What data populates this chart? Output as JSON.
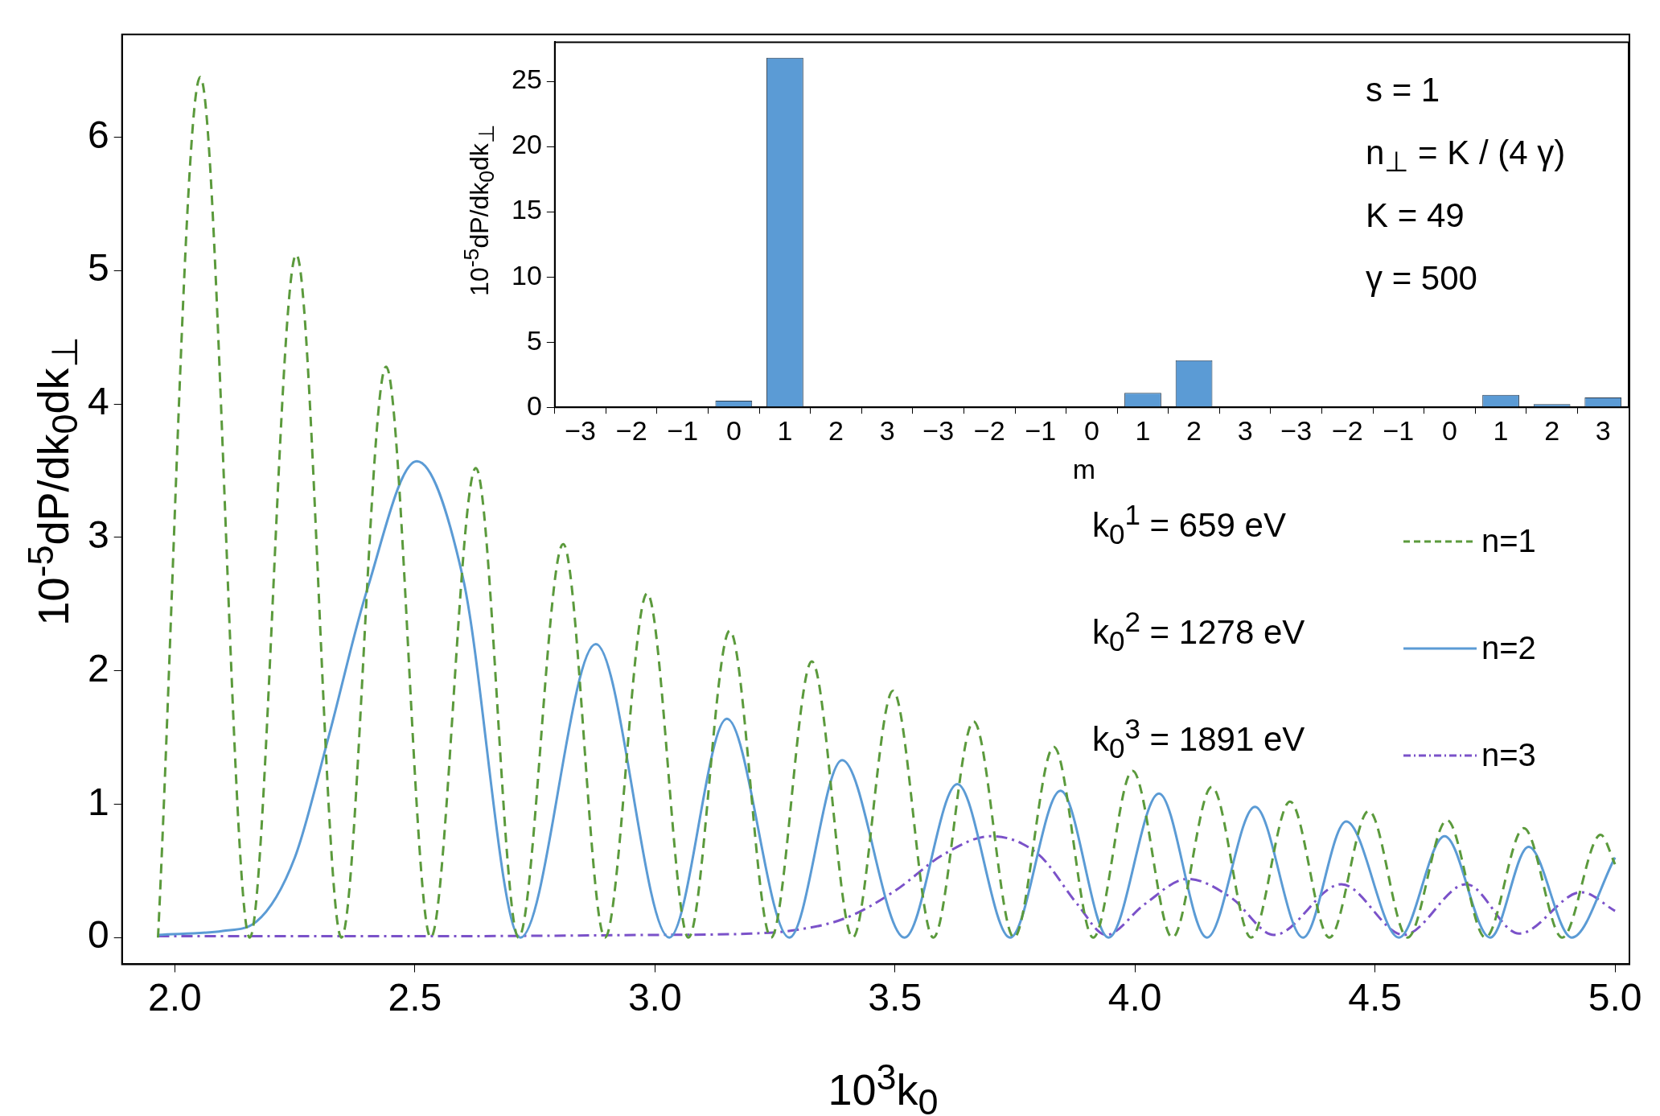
{
  "chart_data": [
    {
      "type": "line",
      "xlabel": "10$^{3}$k$_{0}$",
      "ylabel": "10$^{-5}$dP/dk$_{0}$dk$_{⊥}$",
      "xlim": [
        1.89,
        5.03
      ],
      "ylim": [
        -0.2,
        6.77
      ],
      "xticks": [
        {
          "value": 2,
          "label": "2.0"
        },
        {
          "value": 2.5,
          "label": "2.5"
        },
        {
          "value": 3,
          "label": "3.0"
        },
        {
          "value": 3.5,
          "label": "3.5"
        },
        {
          "value": 4,
          "label": "4.0"
        },
        {
          "value": 4.5,
          "label": "4.5"
        },
        {
          "value": 5,
          "label": "5.0"
        }
      ],
      "yticks": [
        0,
        1,
        2,
        3,
        4,
        5,
        6
      ],
      "grid": false,
      "legend": "right",
      "marker": "none",
      "annotations": [
        "k$_{0}$$^{1}$ = 659 eV",
        "k$_{0}$$^{2}$ = 1278 eV",
        "k$_{0}$$^{3}$ = 1891 eV"
      ],
      "series": [
        {
          "name": "n=1",
          "color": "#5b9a3c",
          "line_style": "dashed",
          "x": [
            1.965,
            2.053,
            2.156,
            2.253,
            2.347,
            2.44,
            2.533,
            2.627,
            2.716,
            2.809,
            2.896,
            2.984,
            3.07,
            3.156,
            3.242,
            3.327,
            3.412,
            3.496,
            3.58,
            3.664,
            3.748,
            3.831,
            3.913,
            3.995,
            4.078,
            4.16,
            4.242,
            4.323,
            4.405,
            4.487,
            4.568,
            4.65,
            4.73,
            4.81,
            4.89,
            4.97,
            5.0
          ],
          "values": [
            0,
            6.45,
            0,
            5.12,
            0,
            4.28,
            0,
            3.52,
            0,
            2.95,
            0,
            2.58,
            0,
            2.3,
            0,
            2.07,
            0,
            1.85,
            0,
            1.62,
            0,
            1.43,
            0,
            1.25,
            0,
            1.13,
            0,
            1.02,
            0,
            0.95,
            0,
            0.88,
            0,
            0.82,
            0,
            0.77,
            0.55
          ]
        },
        {
          "name": "n=2",
          "color": "#5b9bd5",
          "line_style": "solid",
          "x": [
            1.965,
            2.1,
            2.17,
            2.25,
            2.32,
            2.4,
            2.504,
            2.6,
            2.72,
            2.877,
            3.03,
            3.15,
            3.28,
            3.39,
            3.52,
            3.63,
            3.74,
            3.845,
            3.945,
            4.05,
            4.15,
            4.25,
            4.35,
            4.44,
            4.55,
            4.645,
            4.74,
            4.82,
            4.91,
            5.0
          ],
          "values": [
            0.02,
            0.05,
            0.12,
            0.6,
            1.5,
            2.6,
            3.57,
            2.7,
            0,
            2.2,
            0,
            1.64,
            0,
            1.33,
            0,
            1.15,
            0,
            1.1,
            0,
            1.08,
            0,
            0.98,
            0,
            0.87,
            0,
            0.76,
            0,
            0.68,
            0,
            0.6
          ]
        },
        {
          "name": "n=3",
          "color": "#7b52c9",
          "line_style": "dotted",
          "x": [
            1.965,
            2.5,
            3.0,
            3.2,
            3.3,
            3.4,
            3.5,
            3.6,
            3.7,
            3.8,
            3.88,
            3.94,
            4.02,
            4.11,
            4.2,
            4.29,
            4.43,
            4.56,
            4.69,
            4.8,
            4.93,
            5.0
          ],
          "values": [
            0.01,
            0.01,
            0.02,
            0.03,
            0.06,
            0.15,
            0.35,
            0.62,
            0.76,
            0.62,
            0.25,
            0.02,
            0.25,
            0.44,
            0.3,
            0.02,
            0.4,
            0.02,
            0.4,
            0.03,
            0.34,
            0.2
          ]
        }
      ]
    },
    {
      "type": "bar",
      "xlabel": "m",
      "ylabel": "10$^{-5}$dP/dk$_{0}$dk$_{⊥}$",
      "grid": false,
      "categories": [
        "−3",
        "−2",
        "−1",
        "0",
        "1",
        "2",
        "3",
        "−3",
        "−2",
        "−1",
        "0",
        "1",
        "2",
        "3",
        "−3",
        "−2",
        "−1",
        "0",
        "1",
        "2",
        "3"
      ],
      "values": [
        0,
        0,
        0,
        0.5,
        26.8,
        0,
        0,
        0,
        0,
        0,
        0,
        1.1,
        3.6,
        0,
        0,
        0,
        0,
        0,
        0.95,
        0.25,
        0.75
      ],
      "color": "#5b9bd5",
      "ylim": [
        0,
        28
      ],
      "yticks": [
        0,
        5,
        10,
        15,
        20,
        25
      ],
      "annotations": [
        "s = 1",
        "n$_{⊥}$ = K / (4 γ)",
        "K = 49",
        "γ = 500"
      ]
    }
  ]
}
